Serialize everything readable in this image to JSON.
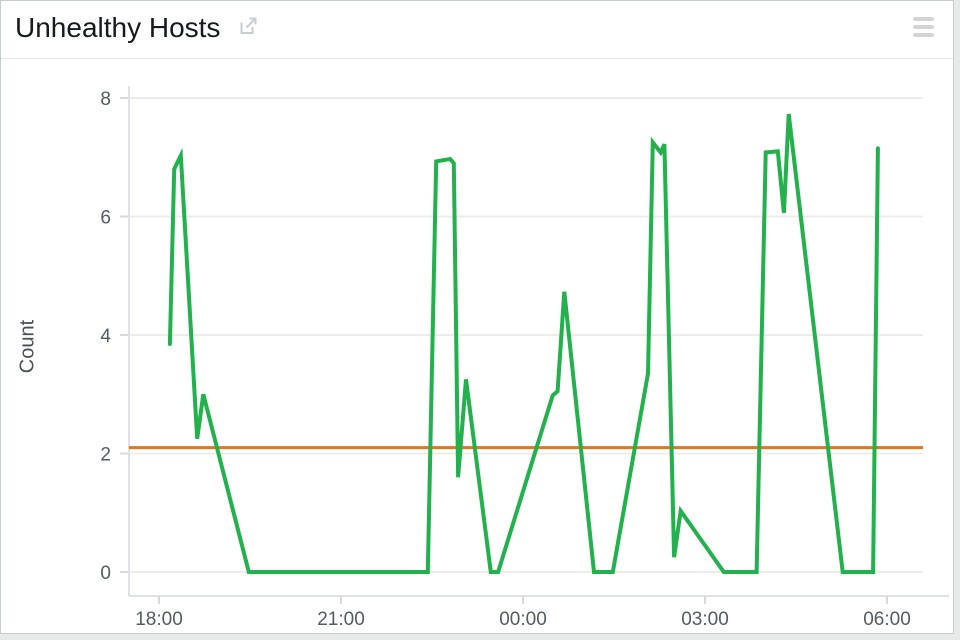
{
  "header": {
    "title": "Unhealthy Hosts"
  },
  "icons": {
    "external_link": "external-link",
    "menu": "hamburger-menu"
  },
  "colors": {
    "series": "#22b14c",
    "threshold": "#e8731a",
    "grid": "#ececec",
    "axis": "#dfe2e5",
    "tick": "#d7dadd",
    "label_text": "#545b64",
    "title_text": "#16191f",
    "icon_gray": "#c9cdd0"
  },
  "chart_data": {
    "type": "line",
    "title": "Unhealthy Hosts",
    "xlabel": "",
    "ylabel": "Count",
    "grid": "horizontal",
    "legend": "none",
    "x_axis": {
      "unit": "hours since 18:00",
      "range": [
        -0.5,
        12.6
      ],
      "ticks": [
        {
          "h": 0,
          "label": "18:00"
        },
        {
          "h": 3,
          "label": "21:00"
        },
        {
          "h": 6,
          "label": "00:00"
        },
        {
          "h": 9,
          "label": "03:00"
        },
        {
          "h": 12,
          "label": "06:00"
        }
      ]
    },
    "y_axis": {
      "range": [
        0,
        8.4
      ],
      "ticks": [
        0,
        2,
        4,
        6,
        8
      ]
    },
    "threshold": {
      "value": 2.1,
      "color": "#e8731a"
    },
    "series": [
      {
        "name": "Unhealthy Hosts",
        "color": "#22b14c",
        "points": [
          [
            0.18,
            3.85
          ],
          [
            0.25,
            6.8
          ],
          [
            0.36,
            7.03
          ],
          [
            0.63,
            2.25
          ],
          [
            0.73,
            3.0
          ],
          [
            1.48,
            0
          ],
          [
            4.43,
            0
          ],
          [
            4.57,
            6.93
          ],
          [
            4.8,
            6.97
          ],
          [
            4.86,
            6.9
          ],
          [
            4.93,
            1.6
          ],
          [
            5.06,
            3.25
          ],
          [
            5.47,
            0
          ],
          [
            5.59,
            0
          ],
          [
            6.49,
            2.98
          ],
          [
            6.57,
            3.05
          ],
          [
            6.68,
            4.73
          ],
          [
            7.17,
            0
          ],
          [
            7.48,
            0
          ],
          [
            8.06,
            3.35
          ],
          [
            8.14,
            7.25
          ],
          [
            8.27,
            7.08
          ],
          [
            8.33,
            7.22
          ],
          [
            8.49,
            0.25
          ],
          [
            8.6,
            1.03
          ],
          [
            9.31,
            0
          ],
          [
            9.85,
            0
          ],
          [
            10.0,
            7.08
          ],
          [
            10.2,
            7.1
          ],
          [
            10.3,
            6.06
          ],
          [
            10.38,
            7.73
          ],
          [
            11.27,
            0
          ],
          [
            11.77,
            0
          ],
          [
            11.85,
            7.15
          ]
        ]
      }
    ]
  }
}
